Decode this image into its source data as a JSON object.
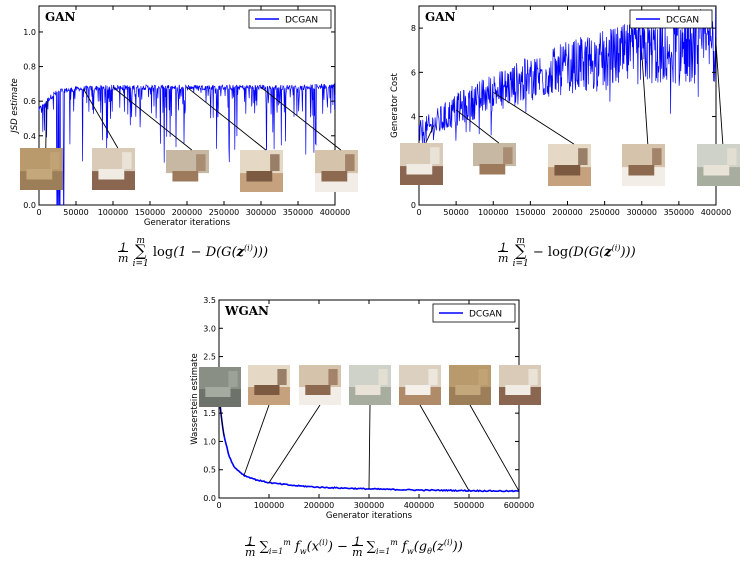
{
  "chart_data": [
    {
      "type": "line",
      "title": "GAN",
      "xlabel": "Generator iterations",
      "ylabel": "JSD estimate",
      "xlim": [
        0,
        400000
      ],
      "ylim": [
        0.0,
        1.15
      ],
      "xticks": [
        0,
        50000,
        100000,
        150000,
        200000,
        250000,
        300000,
        350000,
        400000
      ],
      "yticks": [
        0.0,
        0.2,
        0.4,
        0.6,
        0.8,
        1.0
      ],
      "xtick_labels": [
        "0",
        "50000",
        "100000",
        "150000",
        "200000",
        "250000",
        "300000",
        "350000",
        "400000"
      ],
      "ytick_labels": [
        "0.0",
        "0.2",
        "0.4",
        "0.6",
        "0.8",
        "1.0"
      ],
      "grid": false,
      "legend_position": "top-right",
      "series": [
        {
          "name": "DCGAN",
          "color": "#0000ff",
          "x": [
            0,
            10000,
            20000,
            30000,
            50000,
            100000,
            150000,
            200000,
            250000,
            300000,
            350000,
            400000
          ],
          "y": [
            0.55,
            0.6,
            0.64,
            0.66,
            0.67,
            0.68,
            0.68,
            0.68,
            0.68,
            0.68,
            0.68,
            0.69
          ]
        }
      ],
      "sample_arrow_targets_x": [
        10000,
        60000,
        100000,
        200000,
        300000
      ],
      "formula": "1/m ∑_{i=1}^{m} log(1 − D(G(z^(i))))"
    },
    {
      "type": "line",
      "title": "GAN",
      "xlabel": "",
      "ylabel": "Generator Cost",
      "xlim": [
        0,
        400000
      ],
      "ylim": [
        0,
        9
      ],
      "xticks": [
        0,
        50000,
        100000,
        150000,
        200000,
        250000,
        300000,
        350000,
        400000
      ],
      "yticks": [
        0,
        2,
        4,
        6,
        8
      ],
      "xtick_labels": [
        "0",
        "50000",
        "100000",
        "150000",
        "200000",
        "250000",
        "300000",
        "350000",
        "400000"
      ],
      "ytick_labels": [
        "0",
        "2",
        "4",
        "6",
        "8"
      ],
      "grid": false,
      "legend_position": "top-right",
      "series": [
        {
          "name": "DCGAN",
          "color": "#0000ff",
          "x": [
            0,
            20000,
            50000,
            100000,
            150000,
            200000,
            250000,
            300000,
            350000,
            400000
          ],
          "y": [
            3.2,
            3.6,
            4.3,
            5.1,
            5.7,
            6.2,
            6.6,
            6.9,
            7.1,
            7.3
          ]
        }
      ],
      "sample_arrow_targets_x": [
        20000,
        50000,
        100000,
        300000,
        400000
      ],
      "formula": "1/m ∑_{i=1}^{m} −log(D(G(z^(i))))"
    },
    {
      "type": "line",
      "title": "WGAN",
      "xlabel": "Generator iterations",
      "ylabel": "Wasserstein estimate",
      "xlim": [
        0,
        600000
      ],
      "ylim": [
        0.0,
        3.5
      ],
      "xticks": [
        0,
        100000,
        200000,
        300000,
        400000,
        500000,
        600000
      ],
      "yticks": [
        0.0,
        0.5,
        1.0,
        1.5,
        2.0,
        2.5,
        3.0,
        3.5
      ],
      "xtick_labels": [
        "0",
        "100000",
        "200000",
        "300000",
        "400000",
        "500000",
        "600000"
      ],
      "ytick_labels": [
        "0.0",
        "0.5",
        "1.0",
        "1.5",
        "2.0",
        "2.5",
        "3.0",
        "3.5"
      ],
      "grid": false,
      "legend_position": "top-right",
      "series": [
        {
          "name": "DCGAN",
          "color": "#0000ff",
          "x": [
            0,
            5000,
            10000,
            20000,
            30000,
            50000,
            75000,
            100000,
            150000,
            200000,
            300000,
            400000,
            500000,
            600000
          ],
          "y": [
            1.85,
            1.4,
            1.1,
            0.75,
            0.55,
            0.4,
            0.32,
            0.27,
            0.22,
            0.19,
            0.16,
            0.14,
            0.13,
            0.12
          ]
        }
      ],
      "sample_arrow_targets_x": [
        10000,
        50000,
        100000,
        300000,
        500000,
        600000
      ],
      "formula": "1/m ∑_{i=1}^{m} f_w(x^(i)) − 1/m ∑_{i=1}^{m} f_w(g_θ(z^(i)))"
    }
  ]
}
